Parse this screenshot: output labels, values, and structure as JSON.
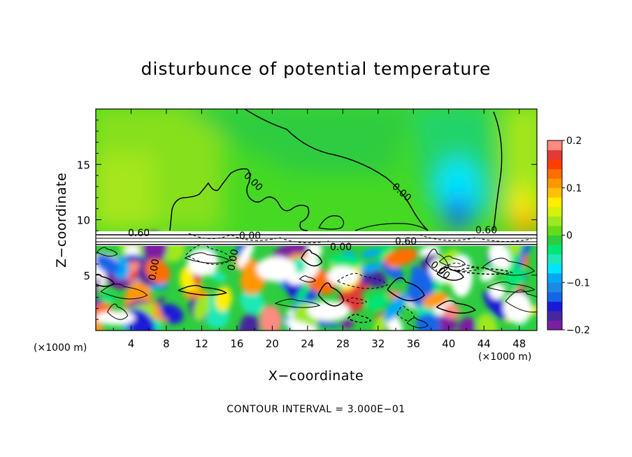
{
  "chart_data": {
    "type": "heatmap",
    "title": "disturbunce of potential temperature",
    "xlabel": "X−coordinate",
    "ylabel": "Z−coordinate",
    "x_unit": "(×1000 m)",
    "x_unit_right": "(×1000 m)",
    "xlim": [
      0,
      50
    ],
    "ylim": [
      0,
      20
    ],
    "x_ticks": [
      4,
      8,
      12,
      16,
      20,
      24,
      28,
      32,
      36,
      40,
      44,
      48
    ],
    "y_ticks": [
      5,
      10,
      15
    ],
    "colorbar": {
      "range": [
        -0.2,
        0.2
      ],
      "tick_labels": [
        "0.2",
        "0.1",
        "0",
        "−0.1",
        "−0.2"
      ],
      "tick_values": [
        0.2,
        0.1,
        0,
        -0.1,
        -0.2
      ],
      "colors": [
        "#7b1fa2",
        "#4527a0",
        "#1a1ad6",
        "#1565e8",
        "#1e88e5",
        "#03a9f4",
        "#00e5ff",
        "#1de9b6",
        "#00e676",
        "#2ecc40",
        "#64dd17",
        "#9ee81f",
        "#d4f20a",
        "#ffee00",
        "#ffc107",
        "#ff9800",
        "#ff6d00",
        "#ff3d00",
        "#e53935",
        "#ff8a80"
      ]
    },
    "contour_labels": [
      "0.60",
      "0.00",
      "0.00",
      "0.00",
      "0.00",
      "0.00",
      "0.60",
      "0.00",
      "0.60",
      "0.00"
    ],
    "contour_interval_text": "CONTOUR INTERVAL = 3.000E−01"
  }
}
